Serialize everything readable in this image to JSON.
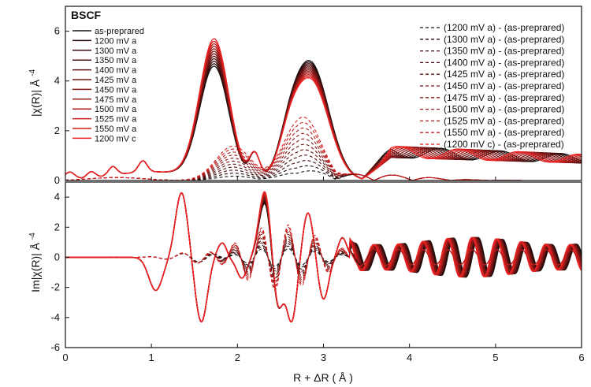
{
  "chart_data": [
    {
      "panel": "top",
      "type": "line",
      "ylabel": "|χ(R)|  Å",
      "ylabel_exponent": "-4",
      "ylim": [
        0,
        7
      ],
      "xlim": [
        0,
        6
      ],
      "yticks": [
        0,
        2,
        4,
        6
      ],
      "sample_label": "BSCF",
      "legend_left": [
        "as-preprared",
        "1200 mV a",
        "1300 mV a",
        "1350 mV a",
        "1400 mV a",
        "1425 mV a",
        "1450 mV a",
        "1475 mV a",
        "1500 mV a",
        "1525 mV a",
        "1550 mV a",
        "1200 mV c"
      ],
      "legend_right": [
        "(1200 mV a) - (as-preprared)",
        "(1300 mV a) - (as-preprared)",
        "(1350 mV a) - (as-preprared)",
        "(1400 mV a) - (as-preprared)",
        "(1425 mV a) - (as-preprared)",
        "(1450 mV a) - (as-preprared)",
        "(1475 mV a) - (as-preprared)",
        "(1500 mV a) - (as-preprared)",
        "(1525 mV a) - (as-preprared)",
        "(1550 mV a) - (as-preprared)",
        "(1200 mV c) - (as-preprared)"
      ],
      "peaks": {
        "main_peak_x": 1.73,
        "main_peak_y": [
          4.5,
          5.6
        ],
        "second_peak_x": 2.85,
        "second_peak_y": [
          4.0,
          4.7
        ],
        "difference_max_y": 2.5
      }
    },
    {
      "panel": "bottom",
      "type": "line",
      "ylabel": "Im|χ(R)|  Å",
      "ylabel_exponent": "-4",
      "ylim": [
        -6,
        5
      ],
      "xlim": [
        0,
        6
      ],
      "yticks": [
        -6,
        -4,
        -2,
        0,
        2,
        4
      ],
      "xticks": [
        0,
        1,
        2,
        3,
        4,
        5,
        6
      ],
      "xlabel": "R + ΔR ( Å )"
    }
  ],
  "colors": {
    "black": "#141414",
    "dark": [
      "#2a0a0a",
      "#3c0c0c",
      "#4f0f0f",
      "#611212",
      "#731515",
      "#861717",
      "#9a1919",
      "#b01b1b",
      "#c61d1d",
      "#da1f1f",
      "#ee2222"
    ]
  }
}
